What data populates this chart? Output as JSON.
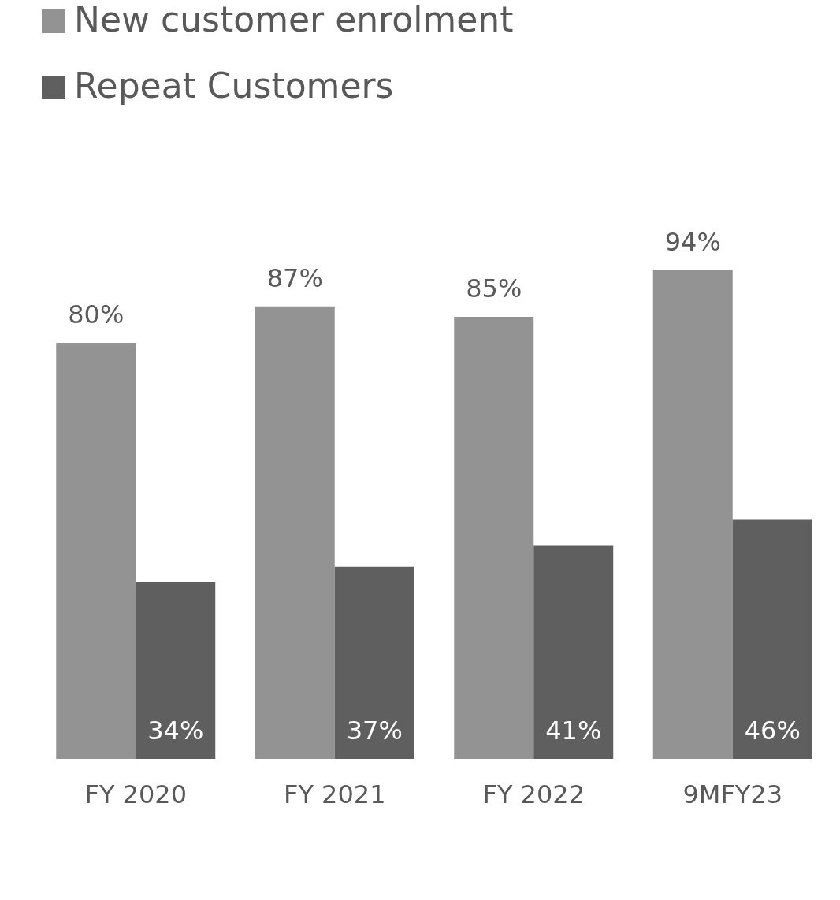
{
  "chart_data": {
    "type": "bar",
    "categories": [
      "FY 2020",
      "FY 2021",
      "FY 2022",
      "9MFY23"
    ],
    "series": [
      {
        "name": "New customer enrolment",
        "color": "#939393",
        "values": [
          80,
          87,
          85,
          94
        ],
        "value_labels": [
          "80%",
          "87%",
          "85%",
          "94%"
        ]
      },
      {
        "name": "Repeat Customers",
        "color": "#5f5f5f",
        "values": [
          34,
          37,
          41,
          46
        ],
        "value_labels": [
          "34%",
          "37%",
          "41%",
          "46%"
        ]
      }
    ],
    "grid": false,
    "legend": "top left"
  }
}
